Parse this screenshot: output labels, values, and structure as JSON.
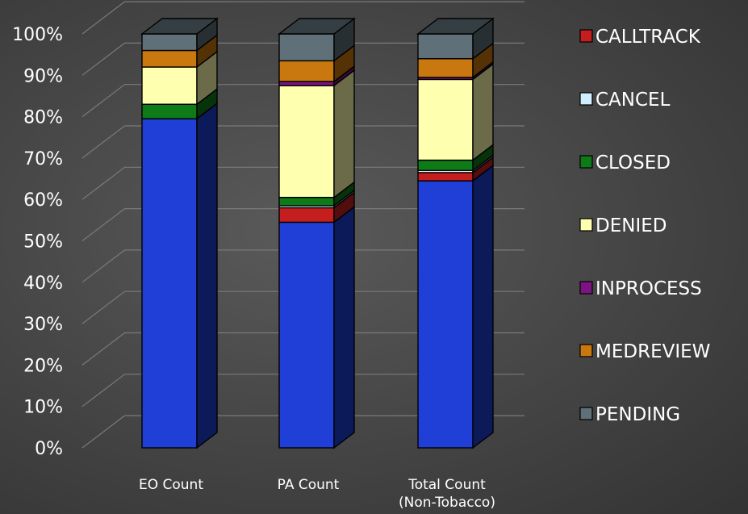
{
  "chart_data": {
    "type": "bar",
    "stacked": true,
    "percent_stacked": true,
    "three_d": true,
    "categories": [
      "EO Count",
      "PA Count",
      "Total Count\n(Non-Tobacco)"
    ],
    "category_label_lines": [
      [
        "EO Count"
      ],
      [
        "PA Count"
      ],
      [
        "Total Count",
        "(Non-Tobacco)"
      ]
    ],
    "series": [
      {
        "name": "",
        "color": "#1f3fd6",
        "values": [
          79.5,
          54.5,
          64.5
        ]
      },
      {
        "name": "CALLTRACK",
        "color": "#c41e1e",
        "values": [
          0,
          3.5,
          2.0
        ]
      },
      {
        "name": "CANCEL",
        "color": "#cfefff",
        "values": [
          0,
          0.5,
          0.5
        ]
      },
      {
        "name": "CLOSED",
        "color": "#0f7a18",
        "values": [
          3.5,
          2.0,
          2.5
        ]
      },
      {
        "name": "DENIED",
        "color": "#ffffb0",
        "values": [
          9.0,
          27.0,
          19.5
        ]
      },
      {
        "name": "INPROCESS",
        "color": "#7b1480",
        "values": [
          0,
          1.0,
          0.5
        ]
      },
      {
        "name": "MEDREVIEW",
        "color": "#c8780e",
        "values": [
          4.0,
          5.0,
          4.5
        ]
      },
      {
        "name": "PENDING",
        "color": "#607078",
        "values": [
          4.0,
          6.5,
          6.0
        ]
      }
    ],
    "ylim": [
      0,
      100
    ],
    "y_ticks": [
      "0%",
      "10%",
      "20%",
      "30%",
      "40%",
      "50%",
      "60%",
      "70%",
      "80%",
      "90%",
      "100%"
    ],
    "grid": true,
    "legend_position": "right",
    "legend": [
      {
        "name": "CALLTRACK",
        "color": "#c41e1e"
      },
      {
        "name": "CANCEL",
        "color": "#cfefff"
      },
      {
        "name": "CLOSED",
        "color": "#0f7a18"
      },
      {
        "name": "DENIED",
        "color": "#ffffb0"
      },
      {
        "name": "INPROCESS",
        "color": "#7b1480"
      },
      {
        "name": "MEDREVIEW",
        "color": "#c8780e"
      },
      {
        "name": "PENDING",
        "color": "#607078"
      }
    ],
    "title": "",
    "xlabel": "",
    "ylabel": ""
  }
}
